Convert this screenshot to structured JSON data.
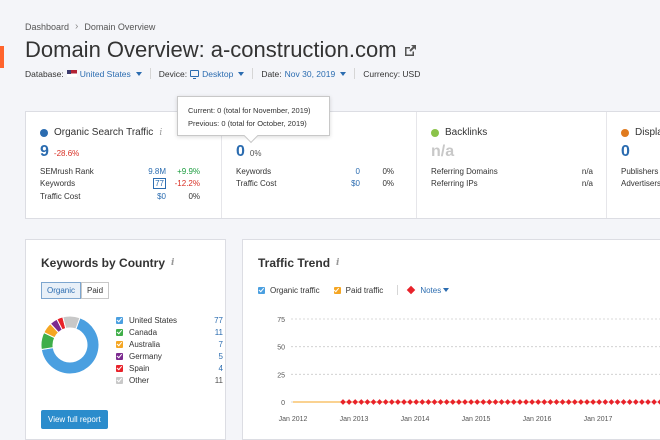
{
  "breadcrumb": {
    "root": "Dashboard",
    "current": "Domain Overview"
  },
  "title": {
    "prefix": "Domain Overview:",
    "domain": "a-construction.com"
  },
  "filters": {
    "database_label": "Database:",
    "database_value": "United States",
    "device_label": "Device:",
    "device_value": "Desktop",
    "date_label": "Date:",
    "date_value": "Nov 30, 2019",
    "currency": "Currency: USD"
  },
  "tooltip": {
    "current": "Current: 0 (total for November, 2019)",
    "previous": "Previous: 0 (total for October, 2019)"
  },
  "organic": {
    "title": "Organic Search Traffic",
    "value": "9",
    "change": "-28.6%",
    "rows": [
      {
        "label": "SEMrush Rank",
        "value": "9.8M",
        "change": "+9.9%"
      },
      {
        "label": "Keywords",
        "value": "77",
        "change": "-12.2%"
      },
      {
        "label": "Traffic Cost",
        "value": "$0",
        "change": "0%"
      }
    ],
    "color": "#2b6cb0"
  },
  "paid": {
    "value": "0",
    "change": "0%",
    "rows": [
      {
        "label": "Keywords",
        "value": "0",
        "change": "0%"
      },
      {
        "label": "Traffic Cost",
        "value": "$0",
        "change": "0%"
      }
    ]
  },
  "backlinks": {
    "title": "Backlinks",
    "value": "n/a",
    "rows": [
      {
        "label": "Referring Domains",
        "value": "n/a"
      },
      {
        "label": "Referring IPs",
        "value": "n/a"
      }
    ],
    "color": "#8bc34a"
  },
  "display": {
    "title": "Displa",
    "value": "0",
    "rows": [
      {
        "label": "Publishers"
      },
      {
        "label": "Advertisers"
      }
    ],
    "color": "#e07b1f"
  },
  "keywords_by_country": {
    "title": "Keywords by Country",
    "toggle": [
      "Organic",
      "Paid"
    ],
    "countries": [
      {
        "name": "United States",
        "count": 77,
        "color": "#4a9fe0"
      },
      {
        "name": "Canada",
        "count": 11,
        "color": "#3fae49"
      },
      {
        "name": "Australia",
        "count": 7,
        "color": "#f5a623"
      },
      {
        "name": "Germany",
        "count": 5,
        "color": "#7b2a8f"
      },
      {
        "name": "Spain",
        "count": 4,
        "color": "#e8222a"
      },
      {
        "name": "Other",
        "count": 11,
        "color": "#c8c8c8"
      }
    ],
    "button": "View full report"
  },
  "traffic_trend": {
    "title": "Traffic Trend",
    "legend": {
      "organic": "Organic traffic",
      "paid": "Paid traffic",
      "notes": "Notes"
    },
    "colors": {
      "organic": "#4a9fe0",
      "paid": "#f5a623",
      "notes": "#e8222a"
    }
  },
  "chart_data": {
    "type": "line",
    "yticks": [
      0,
      25,
      50,
      75
    ],
    "xticks": [
      "Jan 2012",
      "Jan 2013",
      "Jan 2014",
      "Jan 2015",
      "Jan 2016",
      "Jan 2017"
    ],
    "ylim": [
      0,
      75
    ],
    "grid": true,
    "series": [
      {
        "name": "Organic traffic",
        "values": [
          0,
          0,
          0,
          0,
          0,
          0
        ]
      },
      {
        "name": "Paid traffic",
        "values": [
          0,
          0,
          0,
          0,
          0,
          0
        ]
      }
    ]
  }
}
